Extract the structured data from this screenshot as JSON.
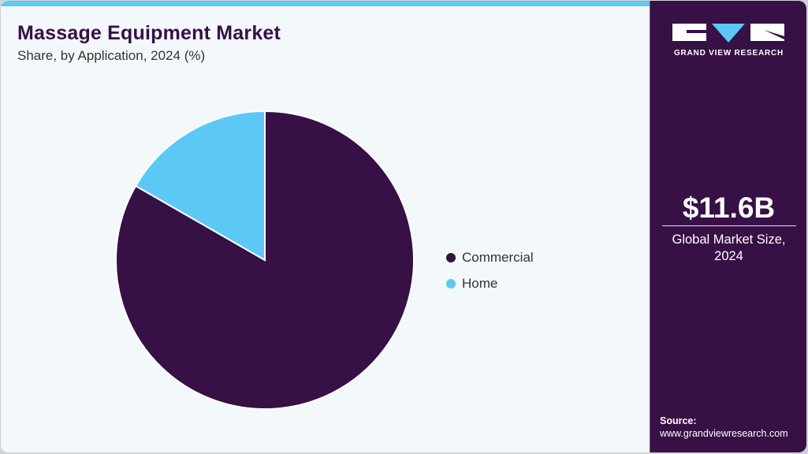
{
  "header": {
    "title": "Massage Equipment Market",
    "subtitle": "Share, by Application, 2024 (%)"
  },
  "legend": [
    {
      "label": "Commercial",
      "color": "#371046"
    },
    {
      "label": "Home",
      "color": "#5bc8f5"
    }
  ],
  "sidebar": {
    "brand": "GRAND VIEW RESEARCH",
    "market_value": "$11.6B",
    "market_label_line1": "Global Market Size,",
    "market_label_line2": "2024",
    "source_label": "Source:",
    "source_url": "www.grandviewresearch.com"
  },
  "colors": {
    "accent_dark": "#371046",
    "accent_light": "#5bc8f5",
    "background": "#f3f8fb"
  },
  "chart_data": {
    "type": "pie",
    "title": "Massage Equipment Market",
    "subtitle": "Share, by Application, 2024 (%)",
    "categories": [
      "Commercial",
      "Home"
    ],
    "values": [
      83.3,
      16.7
    ],
    "colors": [
      "#371046",
      "#5bc8f5"
    ],
    "legend_position": "right",
    "start_angle": "12 o'clock, clockwise"
  }
}
